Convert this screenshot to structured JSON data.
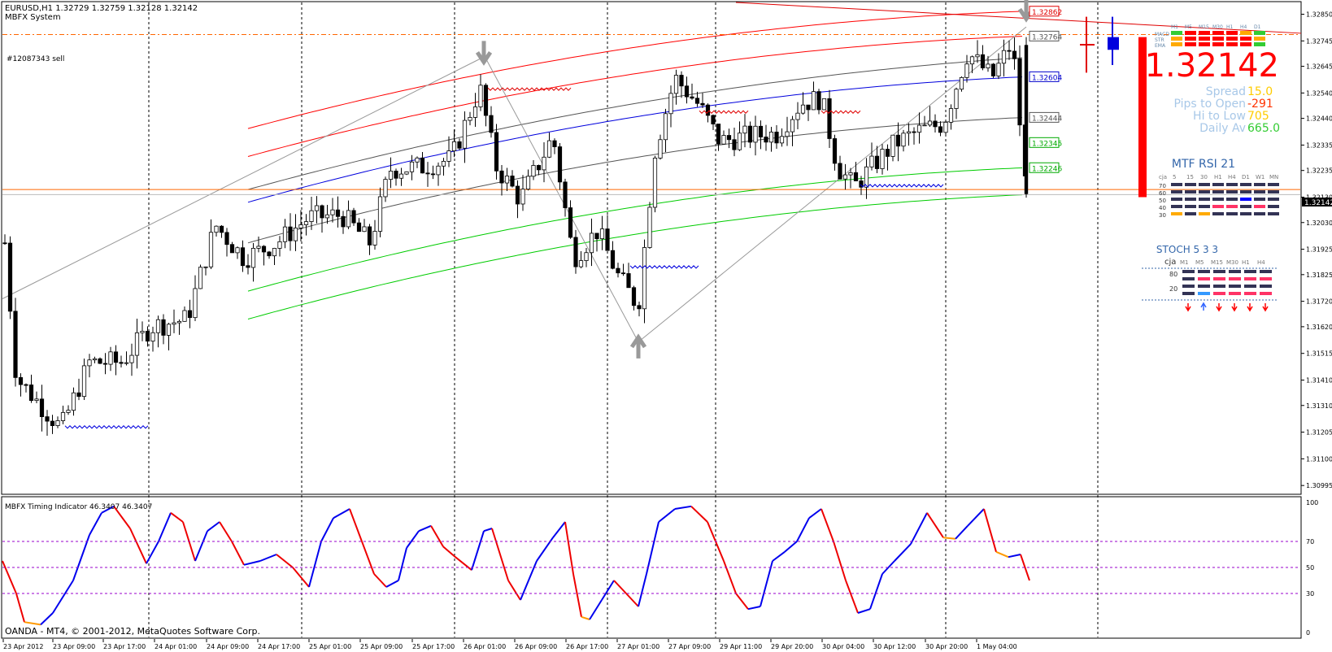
{
  "header": {
    "symbol_line": "EURUSD,H1  1.32729 1.32759 1.32128 1.32142",
    "system_name": "MBFX System",
    "order_label": "#12087343 sell"
  },
  "price_axis": {
    "ticks": [
      "1.32850",
      "1.32745",
      "1.32645",
      "1.32540",
      "1.32440",
      "1.32335",
      "1.32235",
      "1.32130",
      "1.32030",
      "1.31925",
      "1.31825",
      "1.31720",
      "1.31620",
      "1.31515",
      "1.31410",
      "1.31310",
      "1.31205",
      "1.31100",
      "1.30995"
    ],
    "current_price_tag": "1.32142"
  },
  "channel_labels": [
    {
      "text": "1.32862",
      "color": "#e00000"
    },
    {
      "text": "1.32764",
      "color": "#555555"
    },
    {
      "text": "1.32604",
      "color": "#0000cc"
    },
    {
      "text": "1.32444",
      "color": "#555555"
    },
    {
      "text": "1.32345",
      "color": "#00aa00"
    },
    {
      "text": "1.32246",
      "color": "#00aa00"
    }
  ],
  "dashboard": {
    "tf_headers": [
      "M1",
      "M5",
      "M15",
      "M30",
      "H1",
      "H4",
      "D1"
    ],
    "row_labels": [
      "MACD",
      "STR",
      "EMA"
    ],
    "price": "1.32142",
    "stats": [
      {
        "label": "Spread",
        "value": "15.0",
        "value_color": "#ffcc00"
      },
      {
        "label": "Pips to Open",
        "value": "-291",
        "value_color": "#ff3300"
      },
      {
        "label": "Hi to Low",
        "value": "705",
        "value_color": "#ffcc00"
      },
      {
        "label": "Daily Av",
        "value": "665.0",
        "value_color": "#33cc33"
      }
    ],
    "rsi_title": "MTF RSI  21",
    "rsi_headers": [
      "cja",
      "5",
      "15",
      "30",
      "H1",
      "H4",
      "D1",
      "W1",
      "MN"
    ],
    "rsi_levels": [
      "70",
      "60",
      "50",
      "40",
      "30"
    ],
    "stoch_title": "STOCH  5 3 3",
    "stoch_headers": [
      "cja",
      "M1",
      "M5",
      "M15",
      "M30",
      "H1",
      "H4"
    ],
    "stoch_levels": [
      "80",
      "20"
    ],
    "stoch_arrows": [
      "down",
      "up",
      "down",
      "down",
      "down",
      "down"
    ]
  },
  "indicator": {
    "title": "MBFX Timing Indicator 46.3407 46.3407",
    "levels": [
      "100",
      "70",
      "50",
      "30",
      "0"
    ]
  },
  "footer": {
    "copyright": "OANDA - MT4, © 2001-2012, MetaQuotes Software Corp."
  },
  "time_axis": [
    "23 Apr 2012",
    "23 Apr 09:00",
    "23 Apr 17:00",
    "24 Apr 01:00",
    "24 Apr 09:00",
    "24 Apr 17:00",
    "25 Apr 01:00",
    "25 Apr 09:00",
    "25 Apr 17:00",
    "26 Apr 01:00",
    "26 Apr 09:00",
    "26 Apr 17:00",
    "27 Apr 01:00",
    "27 Apr 09:00",
    "29 Apr 11:00",
    "29 Apr 20:00",
    "30 Apr 04:00",
    "30 Apr 12:00",
    "30 Apr 20:00",
    "1 May 04:00"
  ],
  "colors": {
    "bull": "#ffffff",
    "bear": "#000000",
    "upper_band": "#ff0000",
    "lower_band": "#00cc00",
    "mid_band": "#0000dd",
    "grey_band": "#555555",
    "accent": "#ff6600"
  }
}
